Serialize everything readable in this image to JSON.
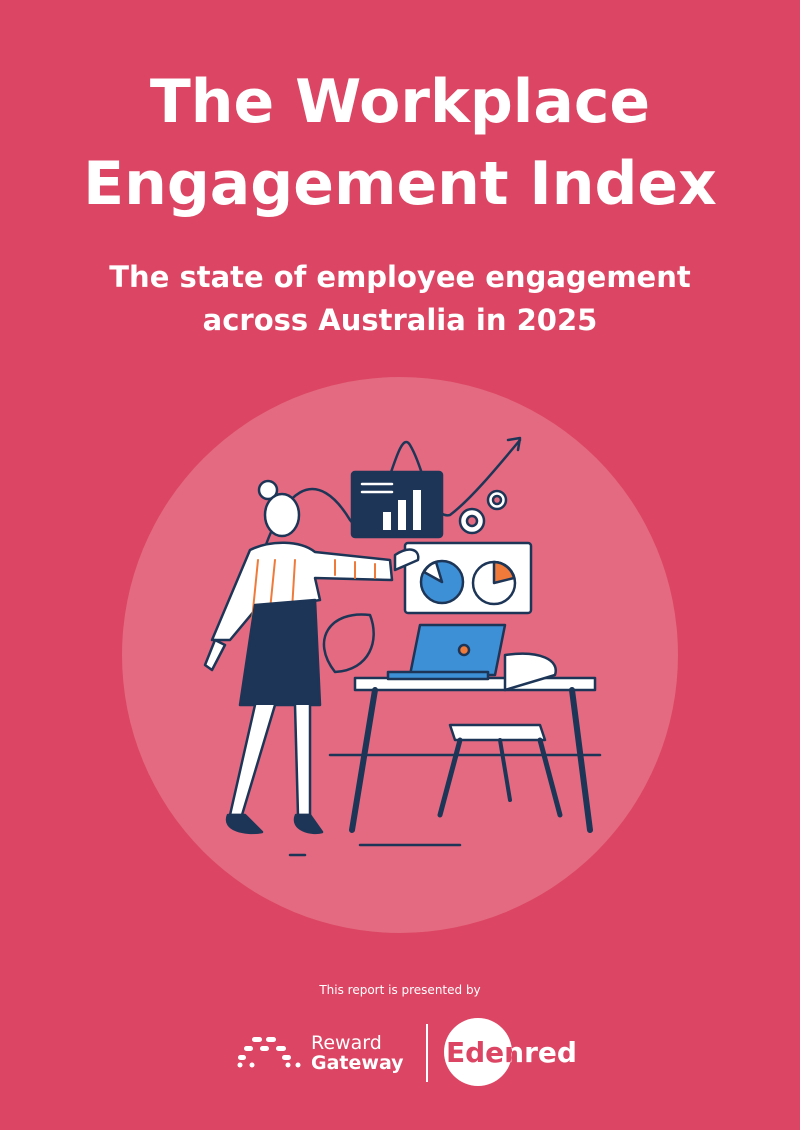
{
  "header": {
    "title": [
      "The Workplace",
      "Engagement Index"
    ],
    "subtitle": [
      "The state of employee engagement",
      "across Australia in 2025"
    ]
  },
  "footer": {
    "presented_by": "This report is presented by",
    "logos": [
      {
        "label": [
          "Reward",
          "Gateway"
        ]
      },
      {
        "label": "Edenred"
      }
    ]
  }
}
